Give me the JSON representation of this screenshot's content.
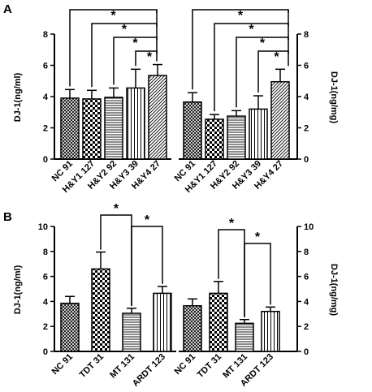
{
  "colors": {
    "ink": "#000000",
    "bar_fill": "#ffffff"
  },
  "panels": [
    {
      "letter": "A"
    },
    {
      "letter": "B"
    }
  ],
  "chart_data": [
    {
      "type": "bar",
      "panel": "A",
      "categories": [
        "NC  91",
        "H&Y1  127",
        "H&Y2  92",
        "H&Y3  39",
        "H&Y4  27"
      ],
      "values": [
        3.9,
        3.85,
        3.95,
        4.55,
        5.35
      ],
      "errors": [
        0.55,
        0.55,
        0.6,
        1.2,
        0.7
      ],
      "patterns": [
        "crosshatch",
        "checker",
        "hlines",
        "vlines",
        "diag"
      ],
      "ylabel": "DJ-1(ng/ml)",
      "ylim": [
        0,
        8
      ],
      "yticks": [
        0,
        2,
        4,
        6,
        8
      ],
      "significance": [
        {
          "from": 0,
          "to": 4,
          "label": "*"
        },
        {
          "from": 1,
          "to": 4,
          "label": "*"
        },
        {
          "from": 2,
          "to": 4,
          "label": "*"
        },
        {
          "from": 3,
          "to": 4,
          "label": "*"
        }
      ]
    },
    {
      "type": "bar",
      "panel": "A",
      "categories": [
        "NC  91",
        "H&Y1  127",
        "H&Y2  92",
        "H&Y3  39",
        "H&Y4  27"
      ],
      "values": [
        3.65,
        2.55,
        2.75,
        3.2,
        4.95
      ],
      "errors": [
        0.6,
        0.3,
        0.35,
        0.85,
        0.8
      ],
      "patterns": [
        "crosshatch",
        "checker",
        "hlines",
        "vlines",
        "diag"
      ],
      "ylabel": "DJ-1(ng/mg)",
      "ylim": [
        0,
        8
      ],
      "yticks": [
        0,
        2,
        4,
        6,
        8
      ],
      "significance": [
        {
          "from": 0,
          "to": 4,
          "label": "*"
        },
        {
          "from": 1,
          "to": 4,
          "label": "*"
        },
        {
          "from": 2,
          "to": 4,
          "label": "*"
        },
        {
          "from": 3,
          "to": 4,
          "label": "*"
        }
      ]
    },
    {
      "type": "bar",
      "panel": "B",
      "categories": [
        "NC 91",
        "TDT 31",
        "MT 131",
        "ARDT 123"
      ],
      "values": [
        3.85,
        6.6,
        3.05,
        4.65
      ],
      "errors": [
        0.55,
        1.35,
        0.4,
        0.55
      ],
      "patterns": [
        "crosshatch",
        "checker",
        "hlines",
        "vlines"
      ],
      "ylabel": "DJ-1(ng/ml)",
      "ylim": [
        0,
        10
      ],
      "yticks": [
        0,
        2,
        4,
        6,
        8,
        10
      ],
      "significance": [
        {
          "from": 1,
          "to": 2,
          "label": "*"
        },
        {
          "from": 2,
          "to": 3,
          "label": "*"
        }
      ]
    },
    {
      "type": "bar",
      "panel": "B",
      "categories": [
        "NC 91",
        "TDT 31",
        "MT 131",
        "ARDT 123"
      ],
      "values": [
        3.65,
        4.65,
        2.25,
        3.2
      ],
      "errors": [
        0.55,
        0.95,
        0.3,
        0.35
      ],
      "patterns": [
        "crosshatch",
        "checker",
        "hlines",
        "vlines"
      ],
      "ylabel": "DJ-1(ng/mg)",
      "ylim": [
        0,
        10
      ],
      "yticks": [
        0,
        2,
        4,
        6,
        8,
        10
      ],
      "significance": [
        {
          "from": 1,
          "to": 2,
          "label": "*"
        },
        {
          "from": 2,
          "to": 3,
          "label": "*"
        }
      ]
    }
  ]
}
